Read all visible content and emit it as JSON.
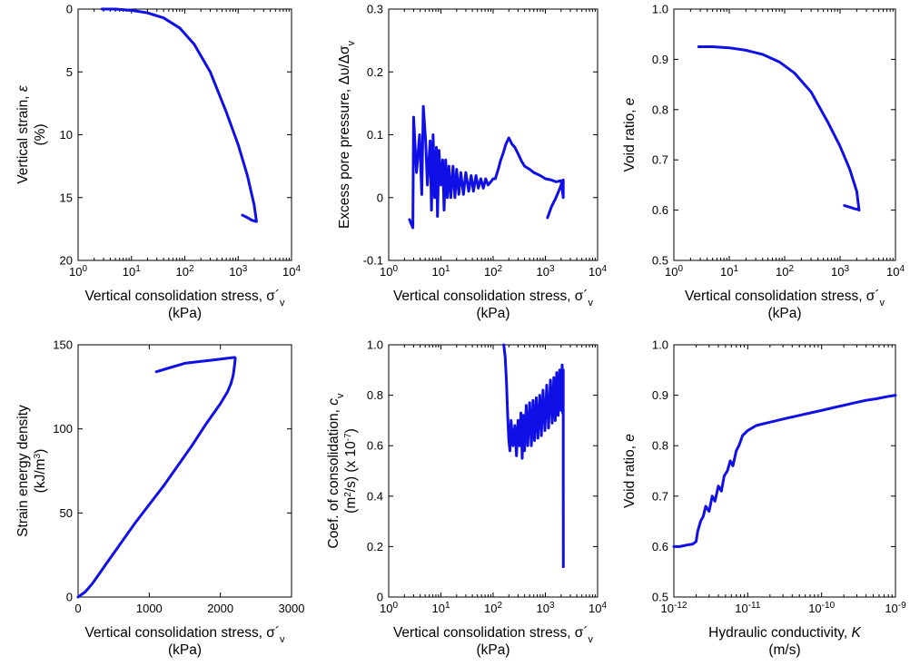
{
  "chart_data": [
    {
      "id": "strain",
      "type": "line",
      "xscale": "log",
      "xlim": [
        1,
        10000
      ],
      "yscale": "linear",
      "ylim": [
        20,
        0
      ],
      "y_inverted": true,
      "xticks": [
        1,
        10,
        100,
        1000,
        10000
      ],
      "xtick_labels": [
        {
          "base": "10",
          "exp": "0"
        },
        {
          "base": "10",
          "exp": "1"
        },
        {
          "base": "10",
          "exp": "2"
        },
        {
          "base": "10",
          "exp": "3"
        },
        {
          "base": "10",
          "exp": "4"
        }
      ],
      "yticks": [
        0,
        5,
        10,
        15,
        20
      ],
      "ytick_labels": [
        "0",
        "5",
        "10",
        "15",
        "20"
      ],
      "xlabel": [
        "Vertical consolidation stress, σ´v",
        "(kPa)"
      ],
      "ylabel": [
        "Vertical strain, ε",
        "(%)"
      ],
      "color": "#1010e6",
      "series": [
        {
          "x": [
            2.8,
            5,
            10,
            20,
            40,
            80,
            150,
            300,
            600,
            1000,
            1500,
            2000,
            2200,
            2150,
            1800,
            1500,
            1200
          ],
          "y": [
            0,
            0,
            0.1,
            0.3,
            0.7,
            1.5,
            2.8,
            5.0,
            8.2,
            10.8,
            13.3,
            15.6,
            16.9,
            16.9,
            16.8,
            16.6,
            16.4
          ]
        }
      ]
    },
    {
      "id": "pore",
      "type": "line",
      "xscale": "log",
      "xlim": [
        1,
        10000
      ],
      "yscale": "linear",
      "ylim": [
        -0.1,
        0.3
      ],
      "xticks": [
        1,
        10,
        100,
        1000,
        10000
      ],
      "xtick_labels": [
        {
          "base": "10",
          "exp": "0"
        },
        {
          "base": "10",
          "exp": "1"
        },
        {
          "base": "10",
          "exp": "2"
        },
        {
          "base": "10",
          "exp": "3"
        },
        {
          "base": "10",
          "exp": "4"
        }
      ],
      "yticks": [
        -0.1,
        0,
        0.1,
        0.2,
        0.3
      ],
      "ytick_labels": [
        "-0.1",
        "0",
        "0.1",
        "0.2",
        "0.3"
      ],
      "xlabel": [
        "Vertical consolidation stress, σ´v",
        "(kPa)"
      ],
      "ylabel": [
        "Excess pore pressure, Δυ/Δσv"
      ],
      "color": "#1010e6",
      "series": [
        {
          "x": [
            2.5,
            2.9,
            3.0,
            3.4,
            3.9,
            4.3,
            4.6,
            5.1,
            5.5,
            6.2,
            6.6,
            7.1,
            7.6,
            8.2,
            8.6,
            9.2,
            10,
            10.8,
            11.5,
            12.3,
            13.3,
            14.2,
            15.5,
            17,
            18.5,
            20,
            22,
            24,
            27,
            30,
            34,
            38,
            42,
            47,
            52,
            58,
            65,
            72,
            80,
            90,
            100,
            110,
            125,
            140,
            155,
            175,
            200,
            230,
            260,
            300,
            350,
            400,
            500,
            600,
            800,
            1000,
            1300,
            1600,
            2000,
            2200,
            2200,
            2150,
            1900,
            1600,
            1300,
            1100
          ],
          "y": [
            -0.035,
            -0.048,
            0.128,
            0.04,
            0.1,
            0.005,
            0.145,
            0.09,
            0.02,
            0.09,
            -0.02,
            0.1,
            0.0,
            0.08,
            -0.03,
            0.075,
            0.02,
            0.06,
            -0.02,
            0.06,
            0.0,
            0.05,
            0.0,
            0.05,
            0.0,
            0.045,
            0.005,
            0.04,
            0.005,
            0.04,
            0.01,
            0.035,
            0.01,
            0.035,
            0.015,
            0.03,
            0.015,
            0.03,
            0.02,
            0.025,
            0.03,
            0.03,
            0.045,
            0.06,
            0.07,
            0.085,
            0.095,
            0.085,
            0.08,
            0.07,
            0.058,
            0.05,
            0.045,
            0.04,
            0.035,
            0.03,
            0.028,
            0.025,
            0.027,
            0.0,
            0.028,
            0.027,
            0.015,
            0.0,
            -0.015,
            -0.032
          ]
        }
      ]
    },
    {
      "id": "void1",
      "type": "line",
      "xscale": "log",
      "xlim": [
        1,
        10000
      ],
      "yscale": "linear",
      "ylim": [
        0.5,
        1.0
      ],
      "xticks": [
        1,
        10,
        100,
        1000,
        10000
      ],
      "xtick_labels": [
        {
          "base": "10",
          "exp": "0"
        },
        {
          "base": "10",
          "exp": "1"
        },
        {
          "base": "10",
          "exp": "2"
        },
        {
          "base": "10",
          "exp": "3"
        },
        {
          "base": "10",
          "exp": "4"
        }
      ],
      "yticks": [
        0.5,
        0.6,
        0.7,
        0.8,
        0.9,
        1.0
      ],
      "ytick_labels": [
        "0.5",
        "0.6",
        "0.7",
        "0.8",
        "0.9",
        "1.0"
      ],
      "xlabel": [
        "Vertical consolidation stress, σ´v",
        "(kPa)"
      ],
      "ylabel": [
        "Void ratio, e"
      ],
      "color": "#1010e6",
      "series": [
        {
          "x": [
            2.8,
            5,
            10,
            20,
            40,
            80,
            150,
            300,
            600,
            1000,
            1500,
            2000,
            2200,
            2150,
            1800,
            1500,
            1200
          ],
          "y": [
            0.925,
            0.925,
            0.923,
            0.918,
            0.91,
            0.895,
            0.873,
            0.835,
            0.775,
            0.727,
            0.681,
            0.637,
            0.6,
            0.601,
            0.603,
            0.606,
            0.609
          ]
        }
      ]
    },
    {
      "id": "energy",
      "type": "line",
      "xscale": "linear",
      "xlim": [
        0,
        3000
      ],
      "yscale": "linear",
      "ylim": [
        0,
        150
      ],
      "xticks": [
        0,
        1000,
        2000,
        3000
      ],
      "xtick_labels": [
        "0",
        "1000",
        "2000",
        "3000"
      ],
      "yticks": [
        0,
        50,
        100,
        150
      ],
      "ytick_labels": [
        "0",
        "50",
        "100",
        "150"
      ],
      "xlabel": [
        "Vertical consolidation stress, σ´v",
        "(kPa)"
      ],
      "ylabel": [
        "Strain energy density",
        "(kJ/m3)"
      ],
      "color": "#1010e6",
      "series": [
        {
          "x": [
            0,
            50,
            100,
            200,
            300,
            400,
            500,
            600,
            800,
            1000,
            1200,
            1400,
            1600,
            1800,
            2000,
            2100,
            2150,
            2180,
            2200,
            2210,
            2200,
            1900,
            1700,
            1500,
            1300,
            1100
          ],
          "y": [
            0,
            1.5,
            3,
            8,
            14,
            20,
            26,
            32,
            44,
            55,
            66,
            78,
            90,
            103,
            115,
            122,
            127,
            132,
            138,
            142,
            142.5,
            141,
            140,
            139,
            136.5,
            134
          ]
        }
      ]
    },
    {
      "id": "cv",
      "type": "line",
      "xscale": "log",
      "xlim": [
        1,
        10000
      ],
      "yscale": "linear",
      "ylim": [
        0,
        1.0
      ],
      "xticks": [
        1,
        10,
        100,
        1000,
        10000
      ],
      "xtick_labels": [
        {
          "base": "10",
          "exp": "0"
        },
        {
          "base": "10",
          "exp": "1"
        },
        {
          "base": "10",
          "exp": "2"
        },
        {
          "base": "10",
          "exp": "3"
        },
        {
          "base": "10",
          "exp": "4"
        }
      ],
      "yticks": [
        0,
        0.2,
        0.4,
        0.6,
        0.8,
        1.0
      ],
      "ytick_labels": [
        "0",
        "0.2",
        "0.4",
        "0.6",
        "0.8",
        "1.0"
      ],
      "xlabel": [
        "Vertical consolidation stress, σ´v",
        "(kPa)"
      ],
      "ylabel": [
        "Coef. of consolidation, cv",
        "(m2/s) (x 10-7)"
      ],
      "color": "#1010e6",
      "series": [
        {
          "x": [
            160,
            170,
            180,
            190,
            200,
            210,
            220,
            240,
            260,
            280,
            300,
            320,
            340,
            360,
            380,
            400,
            430,
            460,
            500,
            540,
            580,
            620,
            670,
            720,
            780,
            840,
            900,
            980,
            1060,
            1150,
            1250,
            1350,
            1450,
            1550,
            1650,
            1760,
            1880,
            2000,
            2100,
            2150,
            2200,
            2200,
            2210
          ],
          "y": [
            1.0,
            0.95,
            0.85,
            0.72,
            0.62,
            0.58,
            0.7,
            0.6,
            0.68,
            0.56,
            0.7,
            0.6,
            0.73,
            0.55,
            0.72,
            0.58,
            0.76,
            0.6,
            0.77,
            0.6,
            0.78,
            0.62,
            0.79,
            0.63,
            0.8,
            0.64,
            0.82,
            0.66,
            0.84,
            0.67,
            0.86,
            0.69,
            0.87,
            0.7,
            0.89,
            0.72,
            0.9,
            0.74,
            0.92,
            0.73,
            0.9,
            0.45,
            0.12
          ]
        }
      ]
    },
    {
      "id": "void2",
      "type": "line",
      "xscale": "log",
      "xlim": [
        1e-12,
        1e-09
      ],
      "yscale": "linear",
      "ylim": [
        0.5,
        1.0
      ],
      "xticks": [
        1e-12,
        1e-11,
        1e-10,
        1e-09
      ],
      "xtick_labels": [
        {
          "base": "10",
          "exp": "-12"
        },
        {
          "base": "10",
          "exp": "-11"
        },
        {
          "base": "10",
          "exp": "-10"
        },
        {
          "base": "10",
          "exp": "-9"
        }
      ],
      "yticks": [
        0.5,
        0.6,
        0.7,
        0.8,
        0.9,
        1.0
      ],
      "ytick_labels": [
        "0.5",
        "0.6",
        "0.7",
        "0.8",
        "0.9",
        "1.0"
      ],
      "xlabel": [
        "Hydraulic conductivity, K",
        "(m/s)"
      ],
      "ylabel": [
        "Void ratio, e"
      ],
      "color": "#1010e6",
      "series": [
        {
          "x": [
            1e-12,
            1.2e-12,
            1.5e-12,
            1.8e-12,
            2e-12,
            2.1e-12,
            2.3e-12,
            2.5e-12,
            2.7e-12,
            3e-12,
            3.3e-12,
            3.6e-12,
            4e-12,
            4.4e-12,
            4.8e-12,
            5.3e-12,
            5.8e-12,
            6.3e-12,
            7e-12,
            7.6e-12,
            8.5e-12,
            1e-11,
            1.3e-11,
            1.8e-11,
            2.5e-11,
            3.5e-11,
            5e-11,
            7e-11,
            1e-10,
            1.4e-10,
            2e-10,
            2.8e-10,
            4e-10,
            5.5e-10,
            7.5e-10,
            1e-09
          ],
          "y": [
            0.6,
            0.6,
            0.603,
            0.605,
            0.61,
            0.63,
            0.65,
            0.66,
            0.68,
            0.67,
            0.7,
            0.69,
            0.72,
            0.71,
            0.74,
            0.75,
            0.77,
            0.76,
            0.79,
            0.8,
            0.82,
            0.83,
            0.84,
            0.845,
            0.85,
            0.855,
            0.86,
            0.865,
            0.87,
            0.875,
            0.88,
            0.885,
            0.89,
            0.893,
            0.897,
            0.9
          ]
        }
      ]
    }
  ]
}
